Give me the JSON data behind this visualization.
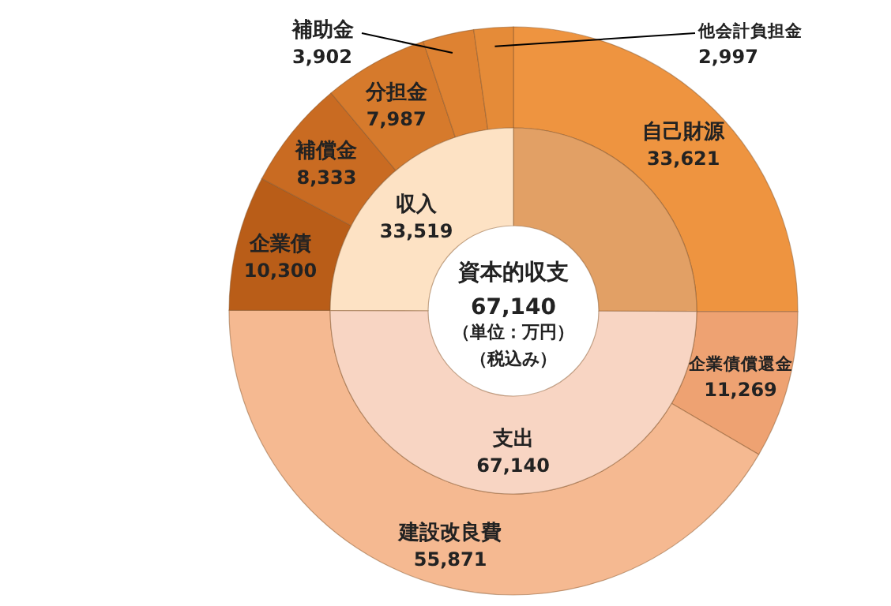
{
  "chart_data": [
    {
      "type": "donut",
      "title": "資本的収支",
      "annotations": [
        "67,140",
        "（単位：万円）",
        "（税込み）"
      ],
      "categories": [
        "自己財源",
        "企業債償還金",
        "建設改良費",
        "企業債",
        "補償金",
        "分担金",
        "補助金",
        "他会計負担金"
      ],
      "values": [
        33621,
        11269,
        55871,
        10300,
        8333,
        7987,
        3902,
        2997
      ],
      "colors": [
        "#ee9440",
        "#eea272",
        "#f5b991",
        "#b95d18",
        "#c96b22",
        "#d67a2c",
        "#de8232",
        "#e58b38"
      ],
      "value_labels": [
        "33,621",
        "11,269",
        "55,871",
        "10,300",
        "8,333",
        "7,987",
        "3,902",
        "2,997"
      ]
    },
    {
      "type": "donut",
      "categories": [
        null,
        "支出",
        "収入"
      ],
      "values": [
        33621,
        67140,
        33519
      ],
      "colors": [
        "#e2a065",
        "#f8d5c3",
        "#fde2c4"
      ],
      "value_labels": [
        null,
        "67,140",
        "33,519"
      ]
    }
  ]
}
